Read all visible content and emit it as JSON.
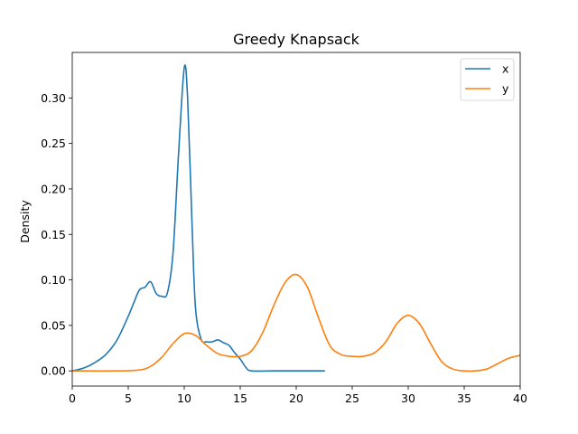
{
  "chart_data": {
    "type": "line",
    "title": "Greedy Knapsack",
    "xlabel": "",
    "ylabel": "Density",
    "xlim": [
      0,
      40
    ],
    "ylim": [
      -0.0167,
      0.35
    ],
    "xticks": [
      0,
      5,
      10,
      15,
      20,
      25,
      30,
      35,
      40
    ],
    "yticks": [
      0.0,
      0.05,
      0.1,
      0.15,
      0.2,
      0.25,
      0.3
    ],
    "ytick_labels": [
      "0.00",
      "0.05",
      "0.10",
      "0.15",
      "0.20",
      "0.25",
      "0.30"
    ],
    "grid": false,
    "legend_position": "top-right",
    "series": [
      {
        "name": "x",
        "color": "#1f77b4",
        "points": [
          [
            0,
            0.0
          ],
          [
            1,
            0.003
          ],
          [
            2,
            0.009
          ],
          [
            3,
            0.018
          ],
          [
            4,
            0.034
          ],
          [
            5,
            0.06
          ],
          [
            5.5,
            0.075
          ],
          [
            6,
            0.089
          ],
          [
            6.5,
            0.092
          ],
          [
            7,
            0.098
          ],
          [
            7.5,
            0.085
          ],
          [
            8,
            0.082
          ],
          [
            8.5,
            0.086
          ],
          [
            9,
            0.13
          ],
          [
            9.5,
            0.24
          ],
          [
            10,
            0.333
          ],
          [
            10.3,
            0.3
          ],
          [
            10.7,
            0.16
          ],
          [
            11,
            0.07
          ],
          [
            11.5,
            0.035
          ],
          [
            12,
            0.032
          ],
          [
            12.5,
            0.032
          ],
          [
            13,
            0.034
          ],
          [
            13.5,
            0.031
          ],
          [
            14,
            0.028
          ],
          [
            14.5,
            0.02
          ],
          [
            15,
            0.013
          ],
          [
            15.5,
            0.004
          ],
          [
            16,
            0.0
          ],
          [
            18,
            0.0
          ],
          [
            20,
            0.0
          ],
          [
            22.5,
            0.0
          ]
        ]
      },
      {
        "name": "y",
        "color": "#ff7f0e",
        "points": [
          [
            0,
            0.0
          ],
          [
            4,
            0.0
          ],
          [
            6,
            0.001
          ],
          [
            7,
            0.005
          ],
          [
            8,
            0.015
          ],
          [
            9,
            0.03
          ],
          [
            10,
            0.041
          ],
          [
            11,
            0.039
          ],
          [
            12,
            0.028
          ],
          [
            13,
            0.019
          ],
          [
            14,
            0.016
          ],
          [
            15,
            0.016
          ],
          [
            16,
            0.022
          ],
          [
            17,
            0.042
          ],
          [
            18,
            0.072
          ],
          [
            19,
            0.097
          ],
          [
            20,
            0.106
          ],
          [
            21,
            0.092
          ],
          [
            22,
            0.058
          ],
          [
            23,
            0.028
          ],
          [
            24,
            0.018
          ],
          [
            25,
            0.016
          ],
          [
            26,
            0.016
          ],
          [
            27,
            0.02
          ],
          [
            28,
            0.032
          ],
          [
            29,
            0.052
          ],
          [
            30,
            0.061
          ],
          [
            31,
            0.052
          ],
          [
            32,
            0.03
          ],
          [
            33,
            0.01
          ],
          [
            34,
            0.002
          ],
          [
            35,
            0.0
          ],
          [
            36,
            0.0
          ],
          [
            37,
            0.002
          ],
          [
            38,
            0.008
          ],
          [
            39,
            0.014
          ],
          [
            40,
            0.017
          ]
        ]
      }
    ]
  }
}
